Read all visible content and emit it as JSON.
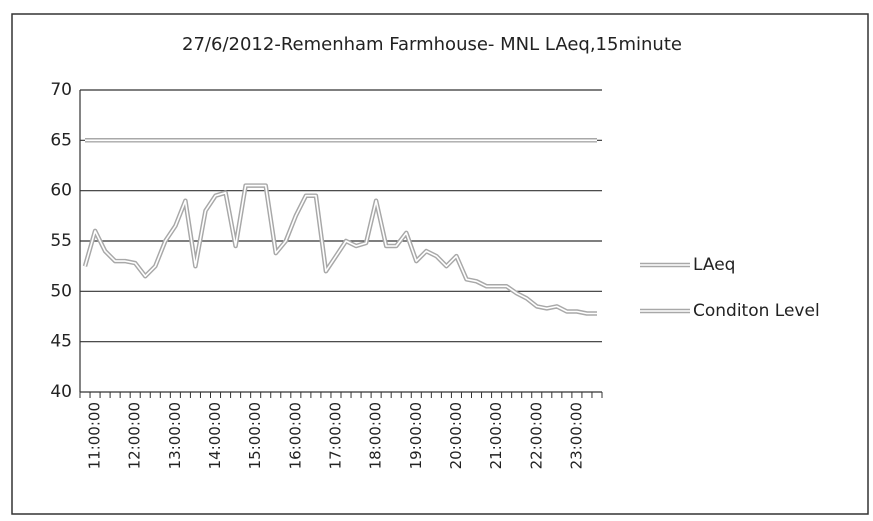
{
  "chart_data": {
    "type": "line",
    "title": "27/6/2012-Remenham Farmhouse- MNL LAeq,15minute",
    "categories": [
      null,
      "11:00:00",
      null,
      null,
      null,
      "12:00:00",
      null,
      null,
      null,
      "13:00:00",
      null,
      null,
      null,
      "14:00:00",
      null,
      null,
      null,
      "15:00:00",
      null,
      null,
      null,
      "16:00:00",
      null,
      null,
      null,
      "17:00:00",
      null,
      null,
      null,
      "18:00:00",
      null,
      null,
      null,
      "19:00:00",
      null,
      null,
      null,
      "20:00:00",
      null,
      null,
      null,
      "21:00:00",
      null,
      null,
      null,
      "22:00:00",
      null,
      null,
      null,
      "23:00:00",
      null,
      null
    ],
    "series": [
      {
        "name": "LAeq",
        "color": "#a8a8a8",
        "values": [
          52.5,
          56,
          54,
          53,
          53,
          52.8,
          51.5,
          52.5,
          55,
          56.5,
          59,
          52.5,
          58,
          59.5,
          59.8,
          54.5,
          60.5,
          60.5,
          60.5,
          53.8,
          55,
          57.5,
          59.5,
          59.5,
          52,
          53.5,
          55,
          54.5,
          54.8,
          59,
          54.5,
          54.5,
          55.8,
          53,
          54,
          53.5,
          52.5,
          53.5,
          51.2,
          51,
          50.5,
          50.5,
          50.5,
          49.8,
          49.3,
          48.5,
          48.3,
          48.5,
          48,
          48,
          47.8,
          47.8
        ]
      },
      {
        "name": "Conditon Level",
        "color": "#a8a8a8",
        "values": [
          65,
          65,
          65,
          65,
          65,
          65,
          65,
          65,
          65,
          65,
          65,
          65,
          65,
          65,
          65,
          65,
          65,
          65,
          65,
          65,
          65,
          65,
          65,
          65,
          65,
          65,
          65,
          65,
          65,
          65,
          65,
          65,
          65,
          65,
          65,
          65,
          65,
          65,
          65,
          65,
          65,
          65,
          65,
          65,
          65,
          65,
          65,
          65,
          65,
          65,
          65,
          65
        ]
      }
    ],
    "ylim": [
      40,
      70
    ],
    "yticks": [
      40,
      45,
      50,
      55,
      60,
      65,
      70
    ],
    "grid": true,
    "legend": "right"
  }
}
